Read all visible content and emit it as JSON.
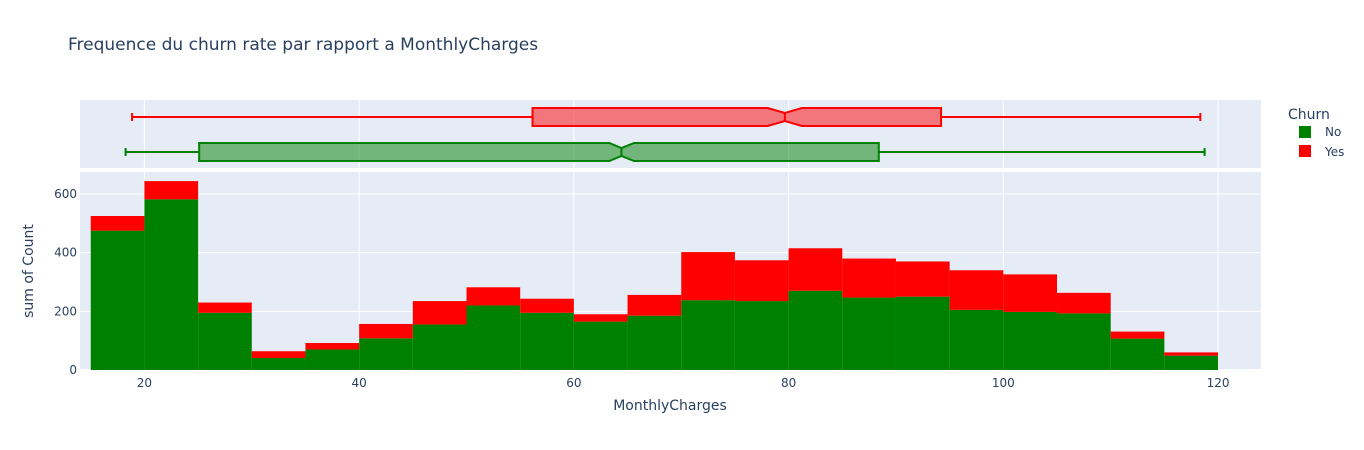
{
  "chart_data": {
    "type": "histogram",
    "title": "Frequence du churn rate par rapport a MonthlyCharges",
    "xlabel": "MonthlyCharges",
    "ylabel": "sum of Count",
    "xlim": [
      14,
      124
    ],
    "ylim": [
      0,
      675
    ],
    "x_ticks": [
      20,
      40,
      60,
      80,
      100,
      120
    ],
    "y_ticks": [
      0,
      200,
      400,
      600
    ],
    "bin_width": 5,
    "bins": [
      15,
      20,
      25,
      30,
      35,
      40,
      45,
      50,
      55,
      60,
      65,
      70,
      75,
      80,
      85,
      90,
      95,
      100,
      105,
      110,
      115
    ],
    "barmode": "stack",
    "grid": true,
    "legend": {
      "title": "Churn",
      "position": "top-right"
    },
    "series": [
      {
        "name": "No",
        "color": "#008000",
        "values": [
          475,
          582,
          195,
          41,
          70,
          108,
          155,
          220,
          195,
          165,
          185,
          238,
          235,
          270,
          247,
          250,
          205,
          198,
          193,
          107,
          49
        ]
      },
      {
        "name": "Yes",
        "color": "#ff0000",
        "values": [
          50,
          62,
          35,
          23,
          22,
          49,
          80,
          62,
          48,
          25,
          71,
          164,
          139,
          145,
          133,
          120,
          135,
          128,
          70,
          24,
          11
        ]
      }
    ],
    "boxplots": [
      {
        "name": "Yes",
        "color": "#ff0000",
        "min": 18.85,
        "q1": 56.15,
        "median": 79.65,
        "q3": 94.2,
        "max": 118.35,
        "notch_low": 78.05,
        "notch_high": 81.25
      },
      {
        "name": "No",
        "color": "#008000",
        "min": 18.25,
        "q1": 25.1,
        "median": 64.43,
        "q3": 88.4,
        "max": 118.75,
        "notch_low": 63.3,
        "notch_high": 65.6
      }
    ]
  }
}
